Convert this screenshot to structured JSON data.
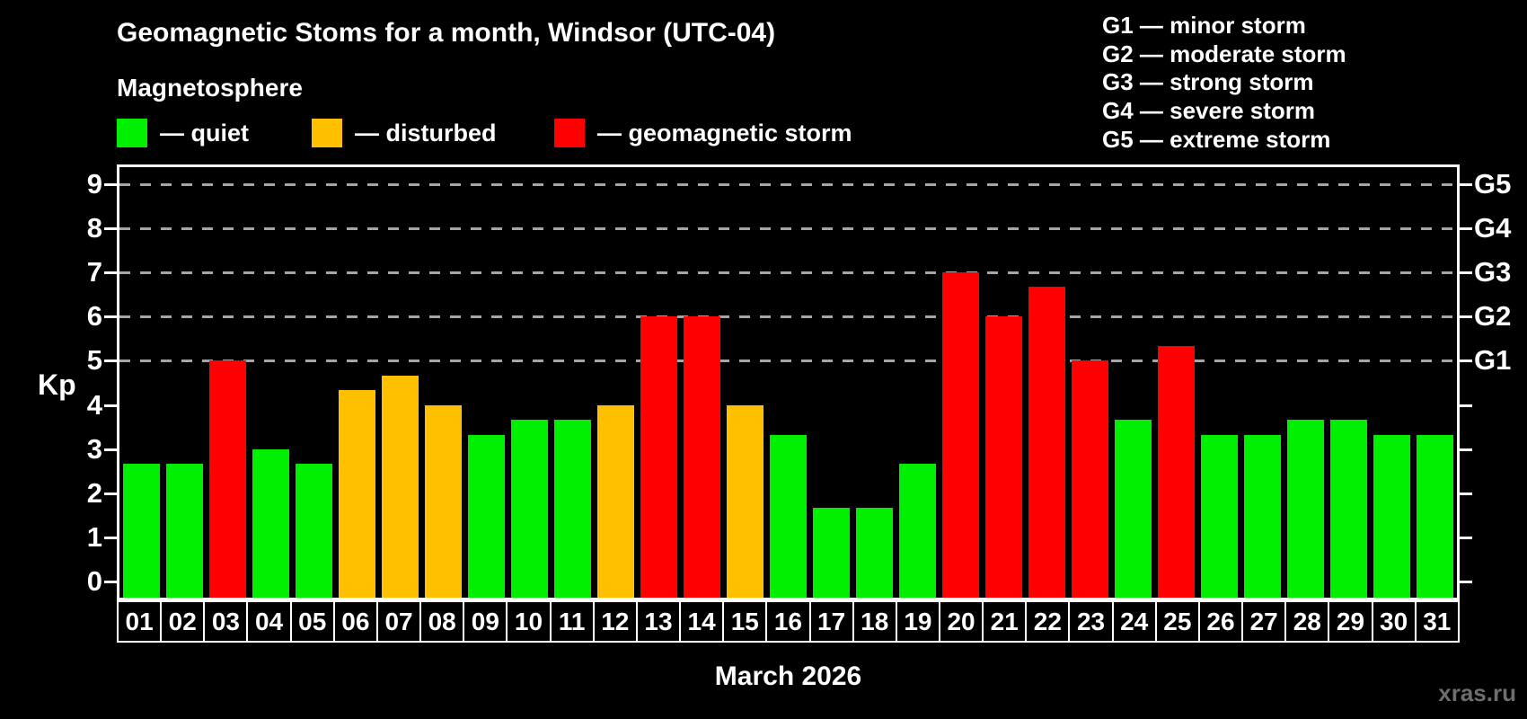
{
  "title": "Geomagnetic Stoms for a month, Windsor (UTC-04)",
  "subtitle": "Magnetosphere",
  "legend": {
    "quiet": "— quiet",
    "disturbed": "— disturbed",
    "storm": "— geomagnetic storm"
  },
  "g_legend": [
    "G1 — minor storm",
    "G2 — moderate storm",
    "G3 — strong storm",
    "G4 — severe storm",
    "G5 — extreme storm"
  ],
  "watermark": "xras.ru",
  "colors": {
    "background": "#000000",
    "axis": "#ffffff",
    "grid": "#a6a6a6",
    "watermark": "#6e6e6e"
  },
  "chart_data": {
    "type": "bar",
    "title": "Geomagnetic Stoms for a month, Windsor (UTC-04)",
    "xlabel": "March 2026",
    "ylabel": "Kp",
    "ylim": [
      -0.36,
      9.38
    ],
    "grid": "dashed horizontal lines at Kp 5-9 only",
    "legend_position": "top-left and top-right",
    "y_ticks": [
      0,
      1,
      2,
      3,
      4,
      5,
      6,
      7,
      8,
      9
    ],
    "g_levels": [
      {
        "kp": 5,
        "label": "G1"
      },
      {
        "kp": 6,
        "label": "G2"
      },
      {
        "kp": 7,
        "label": "G3"
      },
      {
        "kp": 8,
        "label": "G4"
      },
      {
        "kp": 9,
        "label": "G5"
      }
    ],
    "categories": [
      "01",
      "02",
      "03",
      "04",
      "05",
      "06",
      "07",
      "08",
      "09",
      "10",
      "11",
      "12",
      "13",
      "14",
      "15",
      "16",
      "17",
      "18",
      "19",
      "20",
      "21",
      "22",
      "23",
      "24",
      "25",
      "26",
      "27",
      "28",
      "29",
      "30",
      "31"
    ],
    "values": [
      2.67,
      2.67,
      5,
      3,
      2.67,
      4.33,
      4.67,
      4,
      3.33,
      3.67,
      3.67,
      4,
      6,
      6,
      4,
      3.33,
      1.67,
      1.67,
      2.67,
      7,
      6,
      6.67,
      5,
      3.67,
      5.33,
      3.33,
      3.33,
      3.67,
      3.67,
      3.33,
      3.33
    ],
    "statuses": [
      "quiet",
      "quiet",
      "storm",
      "quiet",
      "quiet",
      "disturbed",
      "disturbed",
      "disturbed",
      "quiet",
      "quiet",
      "quiet",
      "disturbed",
      "storm",
      "storm",
      "disturbed",
      "quiet",
      "quiet",
      "quiet",
      "quiet",
      "storm",
      "storm",
      "storm",
      "storm",
      "quiet",
      "storm",
      "quiet",
      "quiet",
      "quiet",
      "quiet",
      "quiet",
      "quiet"
    ],
    "series_colors": {
      "quiet": "#00ee00",
      "disturbed": "#ffc000",
      "storm": "#ff0000"
    }
  }
}
